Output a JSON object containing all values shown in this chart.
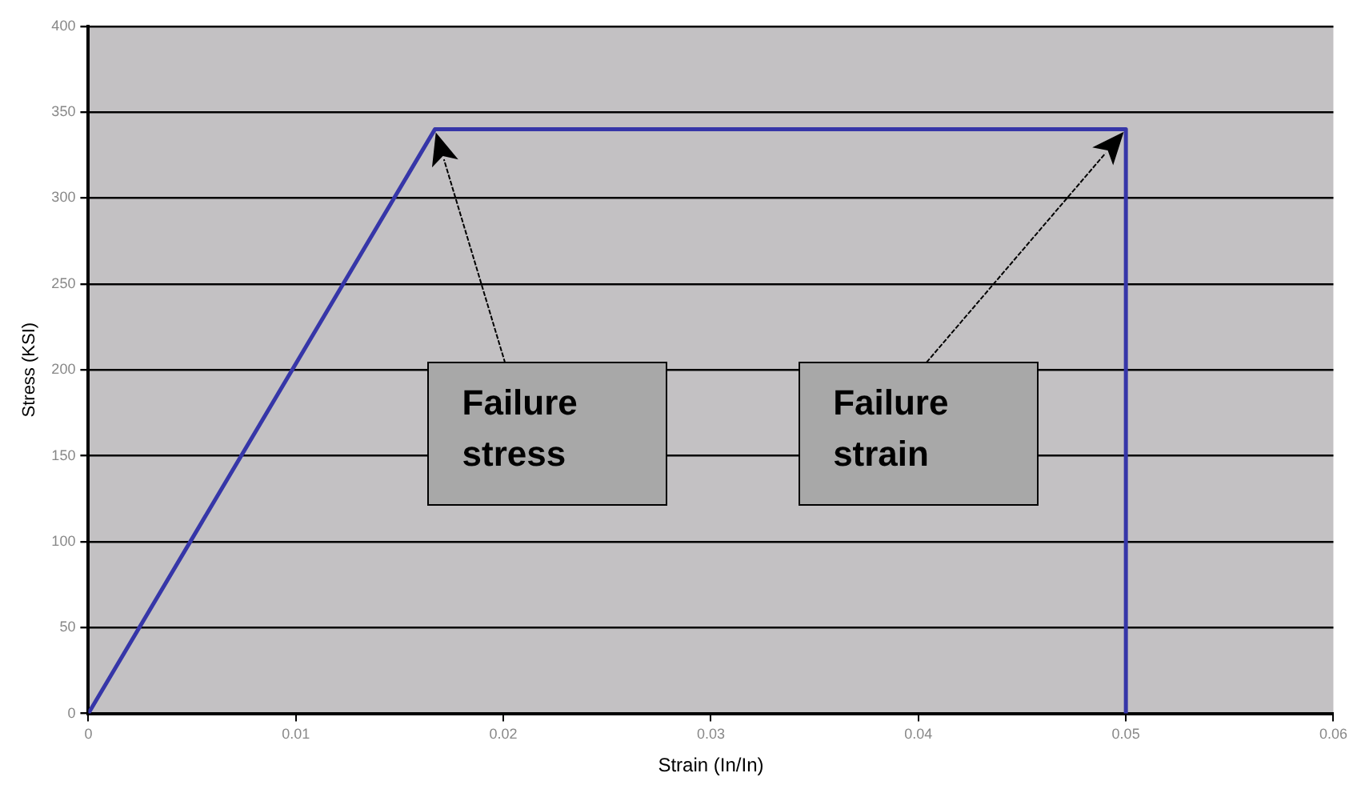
{
  "chart_data": {
    "type": "line",
    "xlabel": "Strain (In/In)",
    "ylabel": "Stress (KSI)",
    "series": [
      {
        "color": "#3636a8",
        "x": [
          0,
          0.0167,
          0.05,
          0.05
        ],
        "values": [
          0,
          340,
          340,
          0
        ]
      }
    ],
    "xlim": [
      0,
      0.06
    ],
    "xticks": [
      0,
      0.01,
      0.02,
      0.03,
      0.04,
      0.05,
      0.06
    ],
    "ylim": [
      0,
      400
    ],
    "yticks": [
      0,
      50,
      100,
      150,
      200,
      250,
      300,
      350,
      400
    ],
    "grid": "y",
    "legend": false,
    "marker": "none",
    "line_style": "solid",
    "annotations": [
      "Failure stress",
      "Failure strain"
    ]
  }
}
